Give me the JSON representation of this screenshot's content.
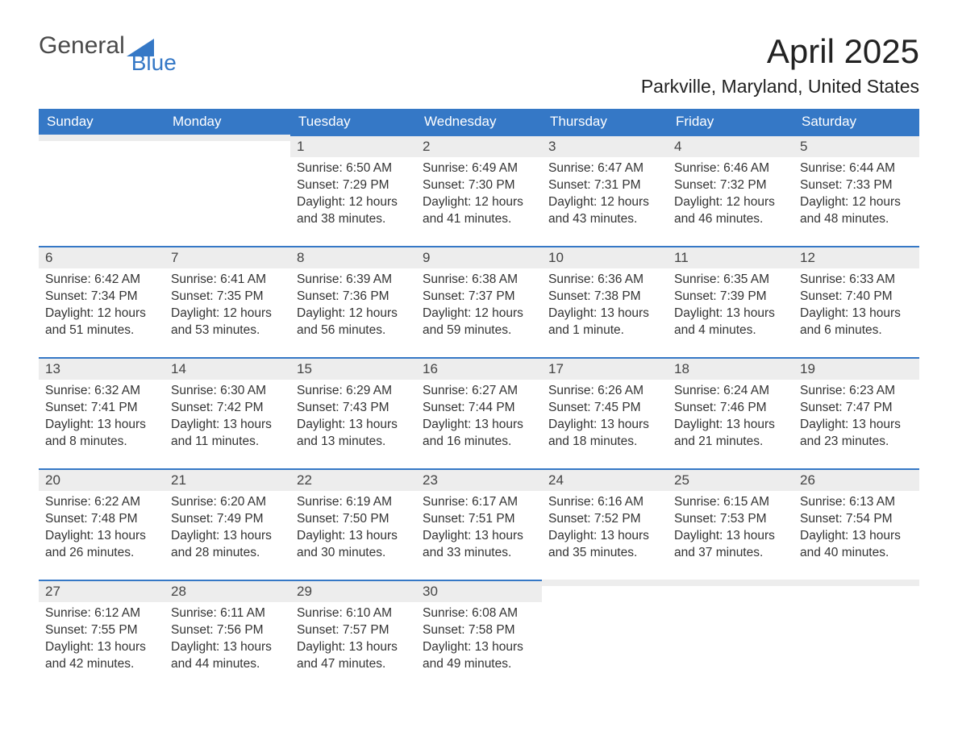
{
  "logo": {
    "general": "General",
    "blue": "Blue"
  },
  "title": "April 2025",
  "subtitle": "Parkville, Maryland, United States",
  "colors": {
    "header_bg": "#3578c6",
    "header_text": "#ffffff",
    "daynum_bg": "#ededed",
    "daynum_border": "#3578c6",
    "body_bg": "#ffffff",
    "text": "#333333",
    "logo_gray": "#4a4a4a",
    "logo_blue": "#3578c6"
  },
  "weekdays": [
    "Sunday",
    "Monday",
    "Tuesday",
    "Wednesday",
    "Thursday",
    "Friday",
    "Saturday"
  ],
  "weeks": [
    [
      {
        "day": "",
        "sunrise": "",
        "sunset": "",
        "daylight": ""
      },
      {
        "day": "",
        "sunrise": "",
        "sunset": "",
        "daylight": ""
      },
      {
        "day": "1",
        "sunrise": "Sunrise: 6:50 AM",
        "sunset": "Sunset: 7:29 PM",
        "daylight": "Daylight: 12 hours and 38 minutes."
      },
      {
        "day": "2",
        "sunrise": "Sunrise: 6:49 AM",
        "sunset": "Sunset: 7:30 PM",
        "daylight": "Daylight: 12 hours and 41 minutes."
      },
      {
        "day": "3",
        "sunrise": "Sunrise: 6:47 AM",
        "sunset": "Sunset: 7:31 PM",
        "daylight": "Daylight: 12 hours and 43 minutes."
      },
      {
        "day": "4",
        "sunrise": "Sunrise: 6:46 AM",
        "sunset": "Sunset: 7:32 PM",
        "daylight": "Daylight: 12 hours and 46 minutes."
      },
      {
        "day": "5",
        "sunrise": "Sunrise: 6:44 AM",
        "sunset": "Sunset: 7:33 PM",
        "daylight": "Daylight: 12 hours and 48 minutes."
      }
    ],
    [
      {
        "day": "6",
        "sunrise": "Sunrise: 6:42 AM",
        "sunset": "Sunset: 7:34 PM",
        "daylight": "Daylight: 12 hours and 51 minutes."
      },
      {
        "day": "7",
        "sunrise": "Sunrise: 6:41 AM",
        "sunset": "Sunset: 7:35 PM",
        "daylight": "Daylight: 12 hours and 53 minutes."
      },
      {
        "day": "8",
        "sunrise": "Sunrise: 6:39 AM",
        "sunset": "Sunset: 7:36 PM",
        "daylight": "Daylight: 12 hours and 56 minutes."
      },
      {
        "day": "9",
        "sunrise": "Sunrise: 6:38 AM",
        "sunset": "Sunset: 7:37 PM",
        "daylight": "Daylight: 12 hours and 59 minutes."
      },
      {
        "day": "10",
        "sunrise": "Sunrise: 6:36 AM",
        "sunset": "Sunset: 7:38 PM",
        "daylight": "Daylight: 13 hours and 1 minute."
      },
      {
        "day": "11",
        "sunrise": "Sunrise: 6:35 AM",
        "sunset": "Sunset: 7:39 PM",
        "daylight": "Daylight: 13 hours and 4 minutes."
      },
      {
        "day": "12",
        "sunrise": "Sunrise: 6:33 AM",
        "sunset": "Sunset: 7:40 PM",
        "daylight": "Daylight: 13 hours and 6 minutes."
      }
    ],
    [
      {
        "day": "13",
        "sunrise": "Sunrise: 6:32 AM",
        "sunset": "Sunset: 7:41 PM",
        "daylight": "Daylight: 13 hours and 8 minutes."
      },
      {
        "day": "14",
        "sunrise": "Sunrise: 6:30 AM",
        "sunset": "Sunset: 7:42 PM",
        "daylight": "Daylight: 13 hours and 11 minutes."
      },
      {
        "day": "15",
        "sunrise": "Sunrise: 6:29 AM",
        "sunset": "Sunset: 7:43 PM",
        "daylight": "Daylight: 13 hours and 13 minutes."
      },
      {
        "day": "16",
        "sunrise": "Sunrise: 6:27 AM",
        "sunset": "Sunset: 7:44 PM",
        "daylight": "Daylight: 13 hours and 16 minutes."
      },
      {
        "day": "17",
        "sunrise": "Sunrise: 6:26 AM",
        "sunset": "Sunset: 7:45 PM",
        "daylight": "Daylight: 13 hours and 18 minutes."
      },
      {
        "day": "18",
        "sunrise": "Sunrise: 6:24 AM",
        "sunset": "Sunset: 7:46 PM",
        "daylight": "Daylight: 13 hours and 21 minutes."
      },
      {
        "day": "19",
        "sunrise": "Sunrise: 6:23 AM",
        "sunset": "Sunset: 7:47 PM",
        "daylight": "Daylight: 13 hours and 23 minutes."
      }
    ],
    [
      {
        "day": "20",
        "sunrise": "Sunrise: 6:22 AM",
        "sunset": "Sunset: 7:48 PM",
        "daylight": "Daylight: 13 hours and 26 minutes."
      },
      {
        "day": "21",
        "sunrise": "Sunrise: 6:20 AM",
        "sunset": "Sunset: 7:49 PM",
        "daylight": "Daylight: 13 hours and 28 minutes."
      },
      {
        "day": "22",
        "sunrise": "Sunrise: 6:19 AM",
        "sunset": "Sunset: 7:50 PM",
        "daylight": "Daylight: 13 hours and 30 minutes."
      },
      {
        "day": "23",
        "sunrise": "Sunrise: 6:17 AM",
        "sunset": "Sunset: 7:51 PM",
        "daylight": "Daylight: 13 hours and 33 minutes."
      },
      {
        "day": "24",
        "sunrise": "Sunrise: 6:16 AM",
        "sunset": "Sunset: 7:52 PM",
        "daylight": "Daylight: 13 hours and 35 minutes."
      },
      {
        "day": "25",
        "sunrise": "Sunrise: 6:15 AM",
        "sunset": "Sunset: 7:53 PM",
        "daylight": "Daylight: 13 hours and 37 minutes."
      },
      {
        "day": "26",
        "sunrise": "Sunrise: 6:13 AM",
        "sunset": "Sunset: 7:54 PM",
        "daylight": "Daylight: 13 hours and 40 minutes."
      }
    ],
    [
      {
        "day": "27",
        "sunrise": "Sunrise: 6:12 AM",
        "sunset": "Sunset: 7:55 PM",
        "daylight": "Daylight: 13 hours and 42 minutes."
      },
      {
        "day": "28",
        "sunrise": "Sunrise: 6:11 AM",
        "sunset": "Sunset: 7:56 PM",
        "daylight": "Daylight: 13 hours and 44 minutes."
      },
      {
        "day": "29",
        "sunrise": "Sunrise: 6:10 AM",
        "sunset": "Sunset: 7:57 PM",
        "daylight": "Daylight: 13 hours and 47 minutes."
      },
      {
        "day": "30",
        "sunrise": "Sunrise: 6:08 AM",
        "sunset": "Sunset: 7:58 PM",
        "daylight": "Daylight: 13 hours and 49 minutes."
      },
      {
        "day": "",
        "sunrise": "",
        "sunset": "",
        "daylight": ""
      },
      {
        "day": "",
        "sunrise": "",
        "sunset": "",
        "daylight": ""
      },
      {
        "day": "",
        "sunrise": "",
        "sunset": "",
        "daylight": ""
      }
    ]
  ]
}
